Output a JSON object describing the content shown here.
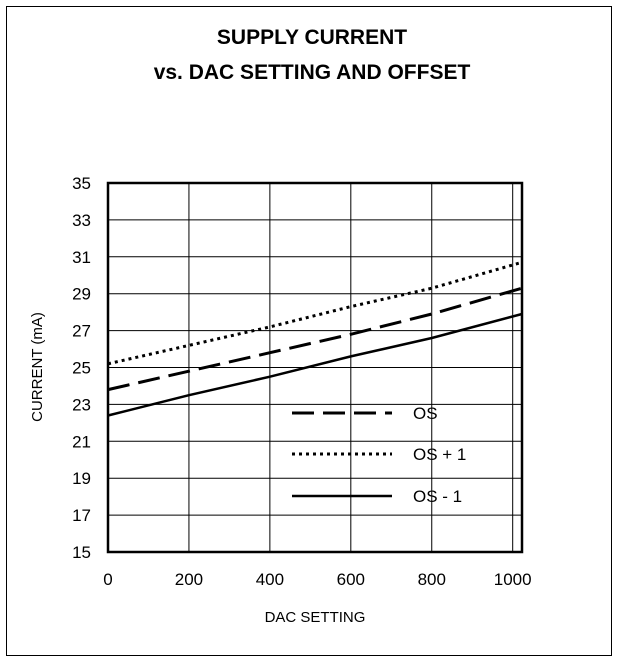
{
  "chart_data": {
    "type": "line",
    "title_line1": "SUPPLY CURRENT",
    "title_line2": "vs. DAC SETTING AND OFFSET",
    "xlabel": "DAC SETTING",
    "ylabel": "CURRENT (mA)",
    "xlim": [
      0,
      1023
    ],
    "ylim": [
      15,
      35
    ],
    "x_ticks": [
      0,
      200,
      400,
      600,
      800,
      1000
    ],
    "y_ticks": [
      15,
      17,
      19,
      21,
      23,
      25,
      27,
      29,
      31,
      33,
      35
    ],
    "grid": true,
    "legend_placement": "lower-right",
    "series": [
      {
        "name": "OS",
        "style": "dashed",
        "x": [
          0,
          200,
          400,
          600,
          800,
          1023
        ],
        "y": [
          23.8,
          24.8,
          25.8,
          26.8,
          27.9,
          29.3
        ]
      },
      {
        "name": "OS + 1",
        "style": "dotted",
        "x": [
          0,
          200,
          400,
          600,
          800,
          1023
        ],
        "y": [
          25.2,
          26.2,
          27.2,
          28.3,
          29.3,
          30.7
        ]
      },
      {
        "name": "OS - 1",
        "style": "solid",
        "x": [
          0,
          200,
          400,
          600,
          800,
          1023
        ],
        "y": [
          22.4,
          23.5,
          24.5,
          25.6,
          26.6,
          27.9
        ]
      }
    ]
  }
}
